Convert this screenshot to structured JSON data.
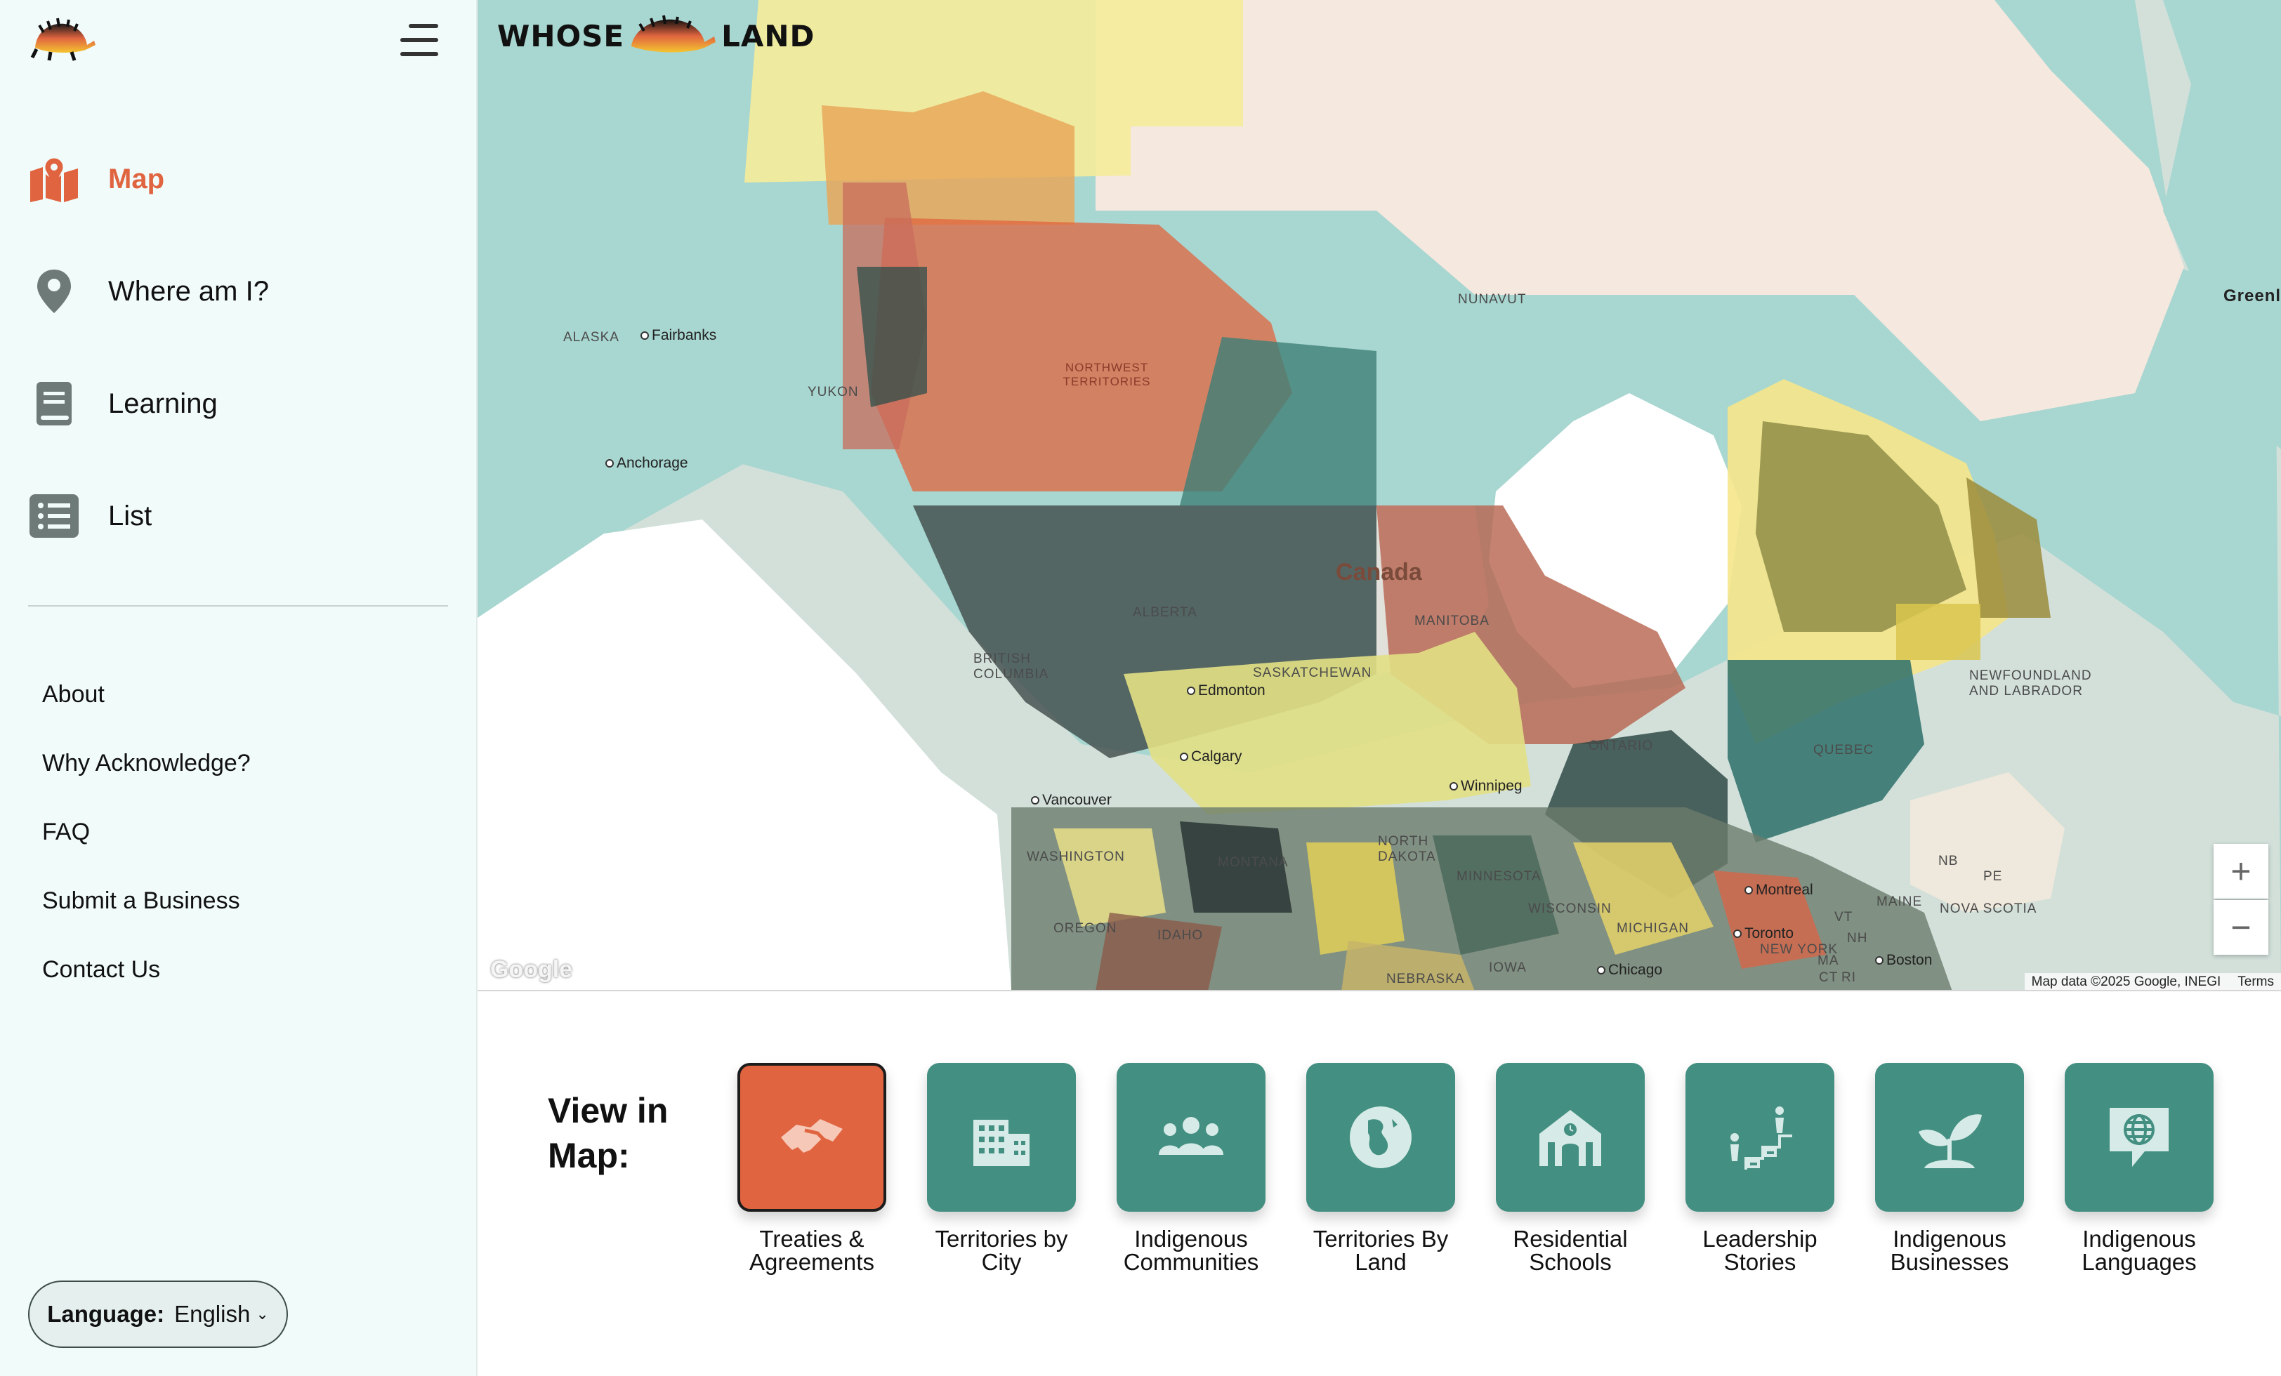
{
  "sidebar": {
    "nav": [
      {
        "label": "Map",
        "icon": "map-icon",
        "active": true
      },
      {
        "label": "Where am I?",
        "icon": "location-pin-icon"
      },
      {
        "label": "Learning",
        "icon": "book-icon"
      },
      {
        "label": "List",
        "icon": "list-icon"
      }
    ],
    "links": [
      "About",
      "Why Acknowledge?",
      "FAQ",
      "Submit a Business",
      "Contact Us"
    ],
    "language": {
      "label": "Language:",
      "value": "English"
    }
  },
  "map": {
    "brand_left": "WHOSE",
    "brand_right": "LAND",
    "country_label": "Canada",
    "region_labels": [
      "ALASKA",
      "NUNAVUT",
      "NORTHWEST TERRITORIES",
      "YUKON",
      "ALBERTA",
      "BRITISH COLUMBIA",
      "SASKATCHEWAN",
      "MANITOBA",
      "ONTARIO",
      "QUEBEC",
      "NEWFOUNDLAND AND LABRADOR",
      "WASHINGTON",
      "OREGON",
      "IDAHO",
      "MONTANA",
      "NORTH DAKOTA",
      "MINNESOTA",
      "WISCONSIN",
      "MICHIGAN",
      "IOWA",
      "NEBRASKA",
      "NEW YORK",
      "MAINE",
      "NOVA SCOTIA",
      "NB",
      "PE",
      "VT",
      "NH",
      "MA",
      "CT",
      "RI",
      "Greenl"
    ],
    "cities": [
      "Fairbanks",
      "Anchorage",
      "Edmonton",
      "Calgary",
      "Vancouver",
      "Winnipeg",
      "Toronto",
      "Montreal",
      "Boston",
      "Chicago"
    ],
    "zoom_in": "+",
    "zoom_out": "−",
    "google": "Google",
    "attribution": "Map data ©2025 Google, INEGI",
    "terms": "Terms"
  },
  "view_in_map": {
    "title": "View in Map:",
    "categories": [
      {
        "label": "Treaties & Agreements",
        "icon": "handshake-icon",
        "active": true
      },
      {
        "label": "Territories by City",
        "icon": "city-buildings-icon"
      },
      {
        "label": "Indigenous Communities",
        "icon": "people-group-icon"
      },
      {
        "label": "Territories By Land",
        "icon": "globe-land-icon"
      },
      {
        "label": "Residential Schools",
        "icon": "school-building-icon"
      },
      {
        "label": "Leadership Stories",
        "icon": "leadership-stairs-icon"
      },
      {
        "label": "Indigenous Businesses",
        "icon": "sprout-icon"
      },
      {
        "label": "Indigenous Languages",
        "icon": "speech-globe-icon"
      }
    ]
  },
  "colors": {
    "accent": "#e0643f",
    "tile": "#438f81",
    "sidebar_bg": "#f1fbfa",
    "water": "#a8d6d0"
  }
}
